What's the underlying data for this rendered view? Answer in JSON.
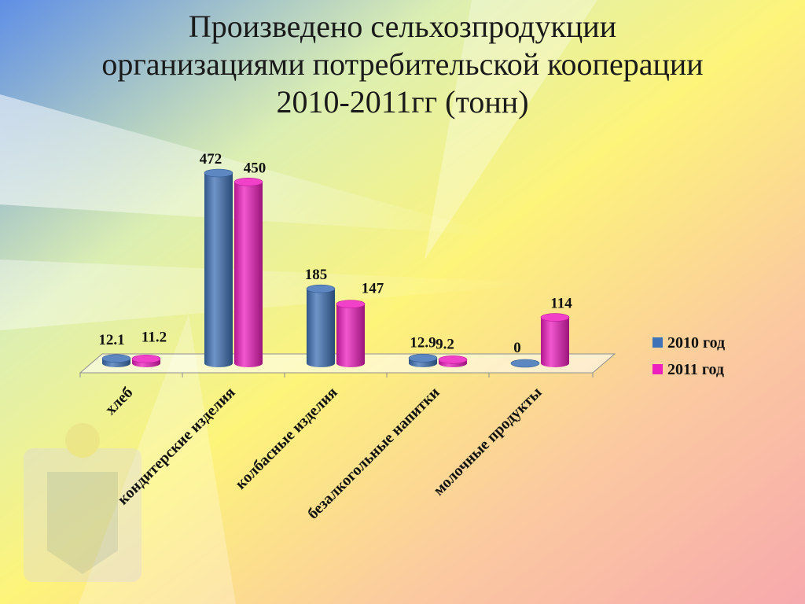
{
  "title_lines": [
    "Произведено сельхозпродукции",
    "организациями потребительской кооперации",
    "2010-2011гг (тонн)"
  ],
  "colors": {
    "s2010": "#3f72b6",
    "s2011": "#ee1fbf"
  },
  "chart_data": {
    "type": "bar",
    "categories": [
      "хлеб",
      "кондитерские изделия",
      "колбасные изделия",
      "безалкогольные напитки",
      "молочные продукты"
    ],
    "series": [
      {
        "name": "2010 год",
        "values": [
          12.1,
          472,
          185,
          12.9,
          0
        ]
      },
      {
        "name": "2011 год",
        "values": [
          11.2,
          450,
          147,
          9.2,
          114
        ]
      }
    ],
    "data_labels": [
      [
        "12.1",
        "472",
        "185",
        "12.9",
        "0"
      ],
      [
        "11.2",
        "450",
        "147",
        "9.2",
        "114"
      ]
    ],
    "legend": "right",
    "grid": false,
    "ylim": [
      0,
      480
    ]
  }
}
